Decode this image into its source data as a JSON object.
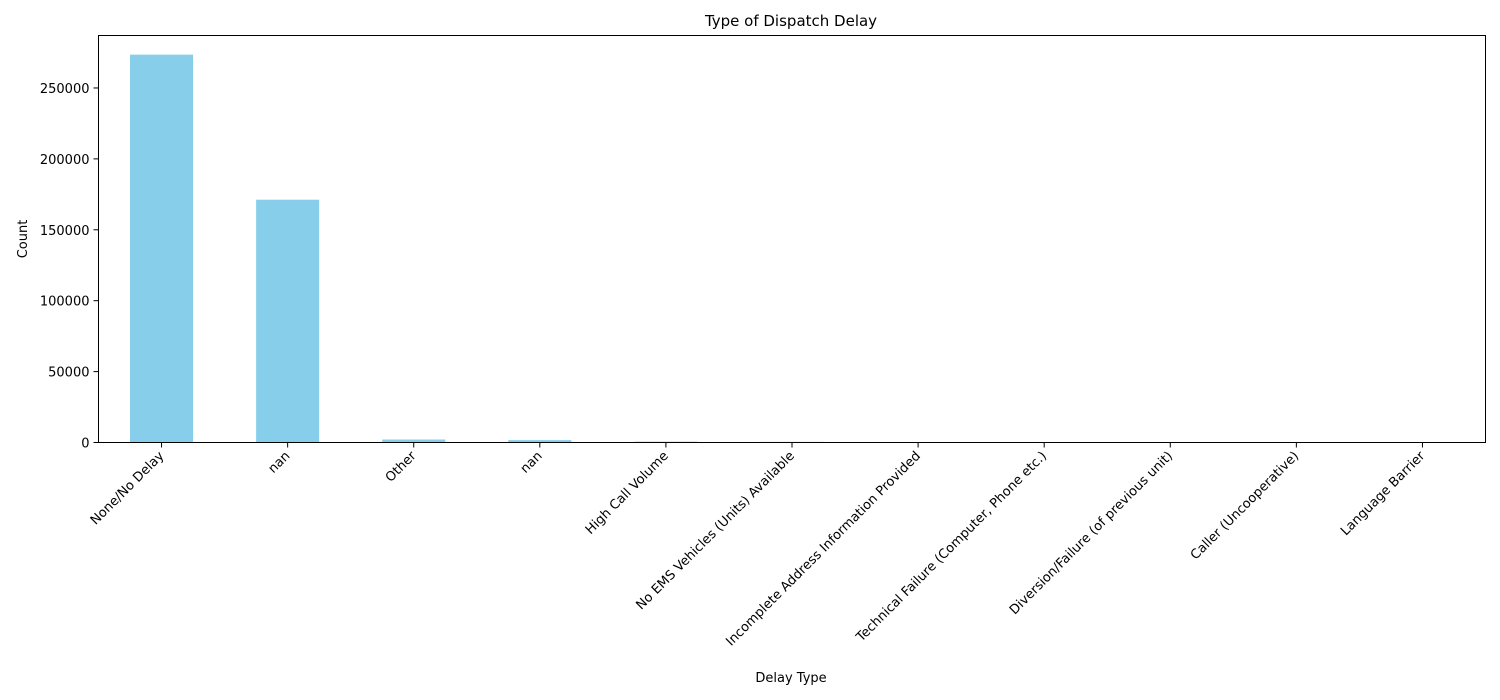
{
  "chart_data": {
    "type": "bar",
    "title": "Type of Dispatch Delay",
    "xlabel": "Delay Type",
    "ylabel": "Count",
    "categories": [
      "None/No Delay",
      "nan",
      "Other",
      "nan",
      "High Call Volume",
      "No EMS Vehicles (Units) Available",
      "Incomplete Address Information Provided",
      "Technical Failure (Computer, Phone etc.)",
      "Diversion/Failure (of previous unit)",
      "Caller (Uncooperative)",
      "Language Barrier"
    ],
    "values": [
      273500,
      171200,
      2100,
      1700,
      600,
      450,
      150,
      80,
      60,
      40,
      15
    ],
    "ylim": [
      0,
      287000
    ],
    "yticks": [
      0,
      50000,
      100000,
      150000,
      200000,
      250000
    ],
    "ytick_labels": [
      "0",
      "50000",
      "100000",
      "150000",
      "200000",
      "250000"
    ],
    "bar_color": "#87ceeb",
    "grid": false,
    "legend": "none"
  }
}
